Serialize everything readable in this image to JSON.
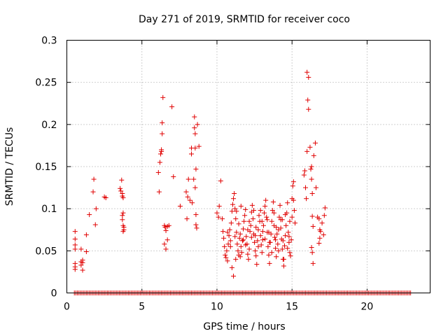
{
  "chart_data": {
    "type": "scatter",
    "title": "Day 271 of 2019, SRMTID for receiver coco",
    "xlabel": "GPS time / hours",
    "ylabel": "SRMTID / TECUs",
    "xlim": [
      0,
      24.2
    ],
    "ylim": [
      0,
      0.3
    ],
    "xticks": [
      0,
      5,
      10,
      15,
      20
    ],
    "xtick_labels": [
      "0",
      "5",
      "10",
      "15",
      "20"
    ],
    "yticks": [
      0,
      0.05,
      0.1,
      0.15,
      0.2,
      0.25,
      0.3
    ],
    "ytick_labels": [
      "0",
      "0.05",
      "0.1",
      "0.15",
      "0.2",
      "0.25",
      "0.3"
    ],
    "grid": true,
    "marker": "+",
    "color": "#e00000",
    "series": [
      {
        "name": "SRMTID",
        "points": [
          [
            0.55,
            0.073
          ],
          [
            0.55,
            0.064
          ],
          [
            0.55,
            0.057
          ],
          [
            0.55,
            0.052
          ],
          [
            0.55,
            0.035
          ],
          [
            0.55,
            0.031
          ],
          [
            0.55,
            0.028
          ],
          [
            0.95,
            0.052
          ],
          [
            0.95,
            0.037
          ],
          [
            0.95,
            0.033
          ],
          [
            1.05,
            0.039
          ],
          [
            1.05,
            0.036
          ],
          [
            1.05,
            0.027
          ],
          [
            1.3,
            0.049
          ],
          [
            1.3,
            0.069
          ],
          [
            1.5,
            0.093
          ],
          [
            1.75,
            0.12
          ],
          [
            1.8,
            0.135
          ],
          [
            1.9,
            0.081
          ],
          [
            1.95,
            0.1
          ],
          [
            2.5,
            0.114
          ],
          [
            2.6,
            0.113
          ],
          [
            3.55,
            0.124
          ],
          [
            3.6,
            0.121
          ],
          [
            3.65,
            0.134
          ],
          [
            3.7,
            0.118
          ],
          [
            3.7,
            0.115
          ],
          [
            3.75,
            0.113
          ],
          [
            3.75,
            0.095
          ],
          [
            3.7,
            0.092
          ],
          [
            3.7,
            0.087
          ],
          [
            3.75,
            0.08
          ],
          [
            3.8,
            0.078
          ],
          [
            3.8,
            0.075
          ],
          [
            3.75,
            0.073
          ],
          [
            6.1,
            0.143
          ],
          [
            6.15,
            0.12
          ],
          [
            6.2,
            0.155
          ],
          [
            6.25,
            0.165
          ],
          [
            6.3,
            0.17
          ],
          [
            6.3,
            0.168
          ],
          [
            6.35,
            0.189
          ],
          [
            6.35,
            0.202
          ],
          [
            6.4,
            0.232
          ],
          [
            6.5,
            0.08
          ],
          [
            6.55,
            0.078
          ],
          [
            6.5,
            0.058
          ],
          [
            6.6,
            0.052
          ],
          [
            6.7,
            0.063
          ],
          [
            6.7,
            0.079
          ],
          [
            6.8,
            0.08
          ],
          [
            6.6,
            0.074
          ],
          [
            7.0,
            0.221
          ],
          [
            7.1,
            0.138
          ],
          [
            7.55,
            0.103
          ],
          [
            7.95,
            0.12
          ],
          [
            8.05,
            0.114
          ],
          [
            8.0,
            0.088
          ],
          [
            8.1,
            0.135
          ],
          [
            8.2,
            0.11
          ],
          [
            8.3,
            0.172
          ],
          [
            8.3,
            0.165
          ],
          [
            8.35,
            0.107
          ],
          [
            8.45,
            0.135
          ],
          [
            8.5,
            0.209
          ],
          [
            8.5,
            0.196
          ],
          [
            8.55,
            0.189
          ],
          [
            8.55,
            0.172
          ],
          [
            8.6,
            0.147
          ],
          [
            8.55,
            0.125
          ],
          [
            8.6,
            0.093
          ],
          [
            8.6,
            0.081
          ],
          [
            8.65,
            0.077
          ],
          [
            8.7,
            0.2
          ],
          [
            8.8,
            0.174
          ],
          [
            10.0,
            0.095
          ],
          [
            10.1,
            0.09
          ],
          [
            10.15,
            0.103
          ],
          [
            10.25,
            0.133
          ],
          [
            10.35,
            0.088
          ],
          [
            10.4,
            0.073
          ],
          [
            10.45,
            0.065
          ],
          [
            10.5,
            0.055
          ],
          [
            10.55,
            0.045
          ],
          [
            10.6,
            0.042
          ],
          [
            10.65,
            0.05
          ],
          [
            10.7,
            0.038
          ],
          [
            10.75,
            0.058
          ],
          [
            10.8,
            0.068
          ],
          [
            10.85,
            0.075
          ],
          [
            10.9,
            0.062
          ],
          [
            10.95,
            0.083
          ],
          [
            11.0,
            0.097
          ],
          [
            11.05,
            0.105
          ],
          [
            11.1,
            0.112
          ],
          [
            11.15,
            0.118
          ],
          [
            11.2,
            0.1
          ],
          [
            11.25,
            0.088
          ],
          [
            11.3,
            0.072
          ],
          [
            11.35,
            0.058
          ],
          [
            11.4,
            0.05
          ],
          [
            11.45,
            0.045
          ],
          [
            11.0,
            0.03
          ],
          [
            11.1,
            0.02
          ],
          [
            11.25,
            0.04
          ],
          [
            11.5,
            0.065
          ],
          [
            11.55,
            0.07
          ],
          [
            11.6,
            0.055
          ],
          [
            11.65,
            0.048
          ],
          [
            11.7,
            0.062
          ],
          [
            11.75,
            0.076
          ],
          [
            11.8,
            0.085
          ],
          [
            11.85,
            0.092
          ],
          [
            11.9,
            0.099
          ],
          [
            11.95,
            0.067
          ],
          [
            12.0,
            0.058
          ],
          [
            12.05,
            0.046
          ],
          [
            12.1,
            0.04
          ],
          [
            12.15,
            0.052
          ],
          [
            12.2,
            0.073
          ],
          [
            12.25,
            0.08
          ],
          [
            12.3,
            0.096
          ],
          [
            12.35,
            0.104
          ],
          [
            12.4,
            0.088
          ],
          [
            12.45,
            0.07
          ],
          [
            12.5,
            0.06
          ],
          [
            12.55,
            0.05
          ],
          [
            12.6,
            0.044
          ],
          [
            12.65,
            0.034
          ],
          [
            12.7,
            0.062
          ],
          [
            12.75,
            0.075
          ],
          [
            12.8,
            0.092
          ],
          [
            12.85,
            0.085
          ],
          [
            12.9,
            0.068
          ],
          [
            12.95,
            0.057
          ],
          [
            13.0,
            0.048
          ],
          [
            13.05,
            0.063
          ],
          [
            13.1,
            0.08
          ],
          [
            13.15,
            0.095
          ],
          [
            13.2,
            0.103
          ],
          [
            13.25,
            0.11
          ],
          [
            13.3,
            0.09
          ],
          [
            13.35,
            0.072
          ],
          [
            13.4,
            0.055
          ],
          [
            13.45,
            0.045
          ],
          [
            13.5,
            0.035
          ],
          [
            13.55,
            0.06
          ],
          [
            13.6,
            0.07
          ],
          [
            13.65,
            0.085
          ],
          [
            13.7,
            0.098
          ],
          [
            13.75,
            0.108
          ],
          [
            13.8,
            0.08
          ],
          [
            13.85,
            0.066
          ],
          [
            13.9,
            0.053
          ],
          [
            13.95,
            0.043
          ],
          [
            14.0,
            0.07
          ],
          [
            14.05,
            0.058
          ],
          [
            14.1,
            0.075
          ],
          [
            14.15,
            0.09
          ],
          [
            14.2,
            0.104
          ],
          [
            14.25,
            0.087
          ],
          [
            14.3,
            0.064
          ],
          [
            14.35,
            0.052
          ],
          [
            14.4,
            0.04
          ],
          [
            14.45,
            0.032
          ],
          [
            14.5,
            0.056
          ],
          [
            14.55,
            0.068
          ],
          [
            14.6,
            0.08
          ],
          [
            14.65,
            0.095
          ],
          [
            14.7,
            0.107
          ],
          [
            14.75,
            0.072
          ],
          [
            14.8,
            0.06
          ],
          [
            14.85,
            0.048
          ],
          [
            14.9,
            0.044
          ],
          [
            14.95,
            0.063
          ],
          [
            15.0,
            0.09
          ],
          [
            15.0,
            0.112
          ],
          [
            15.05,
            0.127
          ],
          [
            15.1,
            0.132
          ],
          [
            15.1,
            0.11
          ],
          [
            15.15,
            0.098
          ],
          [
            15.2,
            0.083
          ],
          [
            11.3,
            0.097
          ],
          [
            11.45,
            0.082
          ],
          [
            11.6,
            0.103
          ],
          [
            11.75,
            0.063
          ],
          [
            11.9,
            0.057
          ],
          [
            12.15,
            0.085
          ],
          [
            12.3,
            0.066
          ],
          [
            12.45,
            0.098
          ],
          [
            12.6,
            0.078
          ],
          [
            12.75,
            0.055
          ],
          [
            12.9,
            0.098
          ],
          [
            13.05,
            0.073
          ],
          [
            13.2,
            0.064
          ],
          [
            13.35,
            0.087
          ],
          [
            13.5,
            0.06
          ],
          [
            13.65,
            0.048
          ],
          [
            13.8,
            0.095
          ],
          [
            13.95,
            0.078
          ],
          [
            14.1,
            0.05
          ],
          [
            14.25,
            0.077
          ],
          [
            14.4,
            0.062
          ],
          [
            14.55,
            0.093
          ],
          [
            14.7,
            0.053
          ],
          [
            14.85,
            0.085
          ],
          [
            10.7,
            0.072
          ],
          [
            10.9,
            0.055
          ],
          [
            11.2,
            0.067
          ],
          [
            11.55,
            0.043
          ],
          [
            12.05,
            0.075
          ],
          [
            12.55,
            0.068
          ],
          [
            13.0,
            0.085
          ],
          [
            13.45,
            0.072
          ],
          [
            13.9,
            0.063
          ],
          [
            14.35,
            0.087
          ],
          [
            14.8,
            0.067
          ],
          [
            14.45,
            0.04
          ],
          [
            15.8,
            0.14
          ],
          [
            15.85,
            0.145
          ],
          [
            15.9,
            0.125
          ],
          [
            15.95,
            0.112
          ],
          [
            16.0,
            0.262
          ],
          [
            16.05,
            0.229
          ],
          [
            16.1,
            0.256
          ],
          [
            16.1,
            0.218
          ],
          [
            16.0,
            0.168
          ],
          [
            16.2,
            0.173
          ],
          [
            16.25,
            0.147
          ],
          [
            16.3,
            0.15
          ],
          [
            16.3,
            0.135
          ],
          [
            16.35,
            0.118
          ],
          [
            16.35,
            0.091
          ],
          [
            16.4,
            0.079
          ],
          [
            16.3,
            0.054
          ],
          [
            16.35,
            0.048
          ],
          [
            16.4,
            0.035
          ],
          [
            16.45,
            0.163
          ],
          [
            16.55,
            0.178
          ],
          [
            16.6,
            0.125
          ],
          [
            16.7,
            0.09
          ],
          [
            16.8,
            0.088
          ],
          [
            16.85,
            0.075
          ],
          [
            16.9,
            0.073
          ],
          [
            16.85,
            0.065
          ],
          [
            16.8,
            0.059
          ],
          [
            17.0,
            0.083
          ],
          [
            17.1,
            0.069
          ],
          [
            17.15,
            0.092
          ],
          [
            17.2,
            0.101
          ]
        ]
      }
    ],
    "zero_ticks": [
      0.5,
      0.6,
      0.7,
      0.8,
      0.9,
      1.0,
      1.1,
      1.2,
      1.3,
      1.4,
      1.5,
      1.6,
      1.7,
      1.8,
      1.9,
      2.0,
      2.1,
      2.2,
      2.3,
      2.4,
      2.5,
      2.6,
      2.7,
      2.8,
      2.9,
      3.0,
      3.1,
      3.2,
      3.3,
      3.4,
      3.5,
      3.6,
      3.7,
      3.8,
      3.9,
      4.0,
      4.1,
      4.2,
      4.3,
      4.4,
      4.5,
      4.6,
      4.7,
      4.8,
      4.9,
      5.0,
      5.1,
      5.2,
      5.3,
      5.4,
      5.5,
      5.6,
      5.7,
      5.8,
      5.9,
      6.0,
      6.1,
      6.2,
      6.3,
      6.4,
      6.5,
      6.6,
      6.7,
      6.8,
      6.9,
      7.0,
      7.1,
      7.2,
      7.3,
      7.4,
      7.5,
      7.6,
      7.7,
      7.8,
      7.9,
      8.0,
      8.1,
      8.2,
      8.3,
      8.4,
      8.5,
      8.6,
      8.7,
      8.8,
      8.9,
      9.0,
      9.1,
      9.2,
      9.3,
      9.4,
      9.5,
      9.6,
      9.7,
      9.8,
      9.9,
      10.0,
      10.1,
      10.2,
      10.3,
      10.4,
      10.5,
      10.6,
      10.7,
      10.8,
      10.9,
      11.0,
      11.1,
      11.2,
      11.3,
      11.4,
      11.5,
      11.6,
      11.7,
      11.8,
      11.9,
      12.0,
      12.1,
      12.2,
      12.3,
      12.4,
      12.5,
      12.6,
      12.7,
      12.8,
      12.9,
      13.0,
      13.1,
      13.2,
      13.3,
      13.4,
      13.5,
      13.6,
      13.7,
      13.8,
      13.9,
      14.0,
      14.1,
      14.2,
      14.3,
      14.4,
      14.5,
      14.6,
      14.7,
      14.8,
      14.9,
      15.0,
      15.1,
      15.2,
      15.3,
      15.4,
      15.5,
      15.6,
      15.7,
      15.8,
      15.9,
      16.0,
      16.1,
      16.2,
      16.3,
      16.4,
      16.5,
      16.6,
      16.7,
      16.8,
      16.9,
      17.0,
      17.1,
      17.2,
      17.3,
      17.4,
      17.5,
      17.6,
      17.7,
      17.8,
      17.9,
      18.0,
      18.1,
      18.2,
      18.3,
      18.4,
      18.5,
      18.6,
      18.7,
      18.8,
      18.9,
      19.0,
      19.1,
      19.2,
      19.3,
      19.4,
      19.5,
      19.6,
      19.7,
      19.8,
      19.9,
      20.0,
      20.1,
      20.2,
      20.3,
      20.4,
      20.5,
      20.6,
      20.7,
      20.8,
      20.9,
      21.0,
      21.1,
      21.2,
      21.3,
      21.4,
      21.5,
      21.6,
      21.7,
      21.8,
      21.9,
      22.0,
      22.1,
      22.2,
      22.3,
      22.4,
      22.5,
      22.6,
      22.7,
      22.8,
      22.9
    ]
  }
}
